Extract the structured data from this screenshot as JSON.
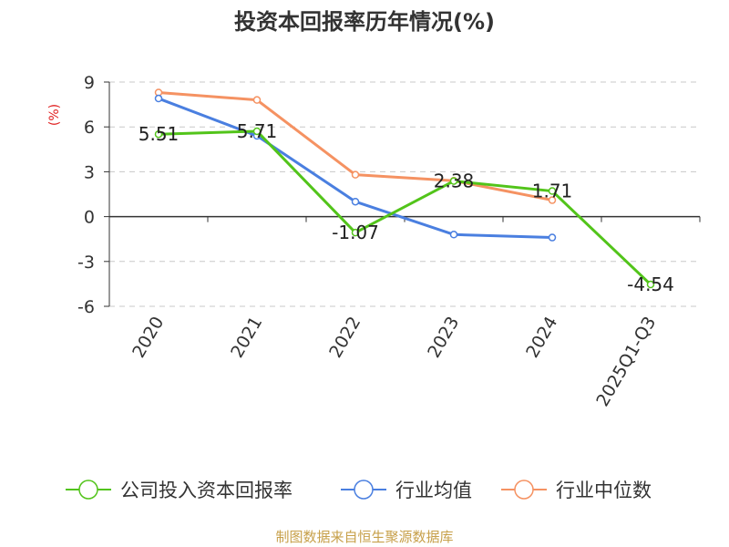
{
  "chart_data": {
    "type": "line",
    "title": "投资本回报率历年情况(%)",
    "ylabel": "(%)",
    "categories": [
      "2020",
      "2021",
      "2022",
      "2023",
      "2024",
      "2025Q1-Q3"
    ],
    "ylim": [
      -6,
      9
    ],
    "yticks": [
      9,
      6,
      3,
      0,
      -3,
      -6
    ],
    "grid": true,
    "legend_position": "bottom",
    "series": [
      {
        "name": "公司投入资本回报率",
        "color": "#52c41a",
        "values": [
          5.51,
          5.71,
          -1.07,
          2.38,
          1.71,
          -4.54
        ],
        "labels": [
          "5.51",
          "5.71",
          "-1.07",
          "2.38",
          "1.71",
          "-4.54"
        ]
      },
      {
        "name": "行业均值",
        "color": "#4a7fe0",
        "values": [
          7.9,
          5.4,
          1.0,
          -1.2,
          -1.4,
          null
        ]
      },
      {
        "name": "行业中位数",
        "color": "#f59262",
        "values": [
          8.3,
          7.8,
          2.8,
          2.4,
          1.1,
          null
        ]
      }
    ]
  },
  "source": "制图数据来自恒生聚源数据库"
}
